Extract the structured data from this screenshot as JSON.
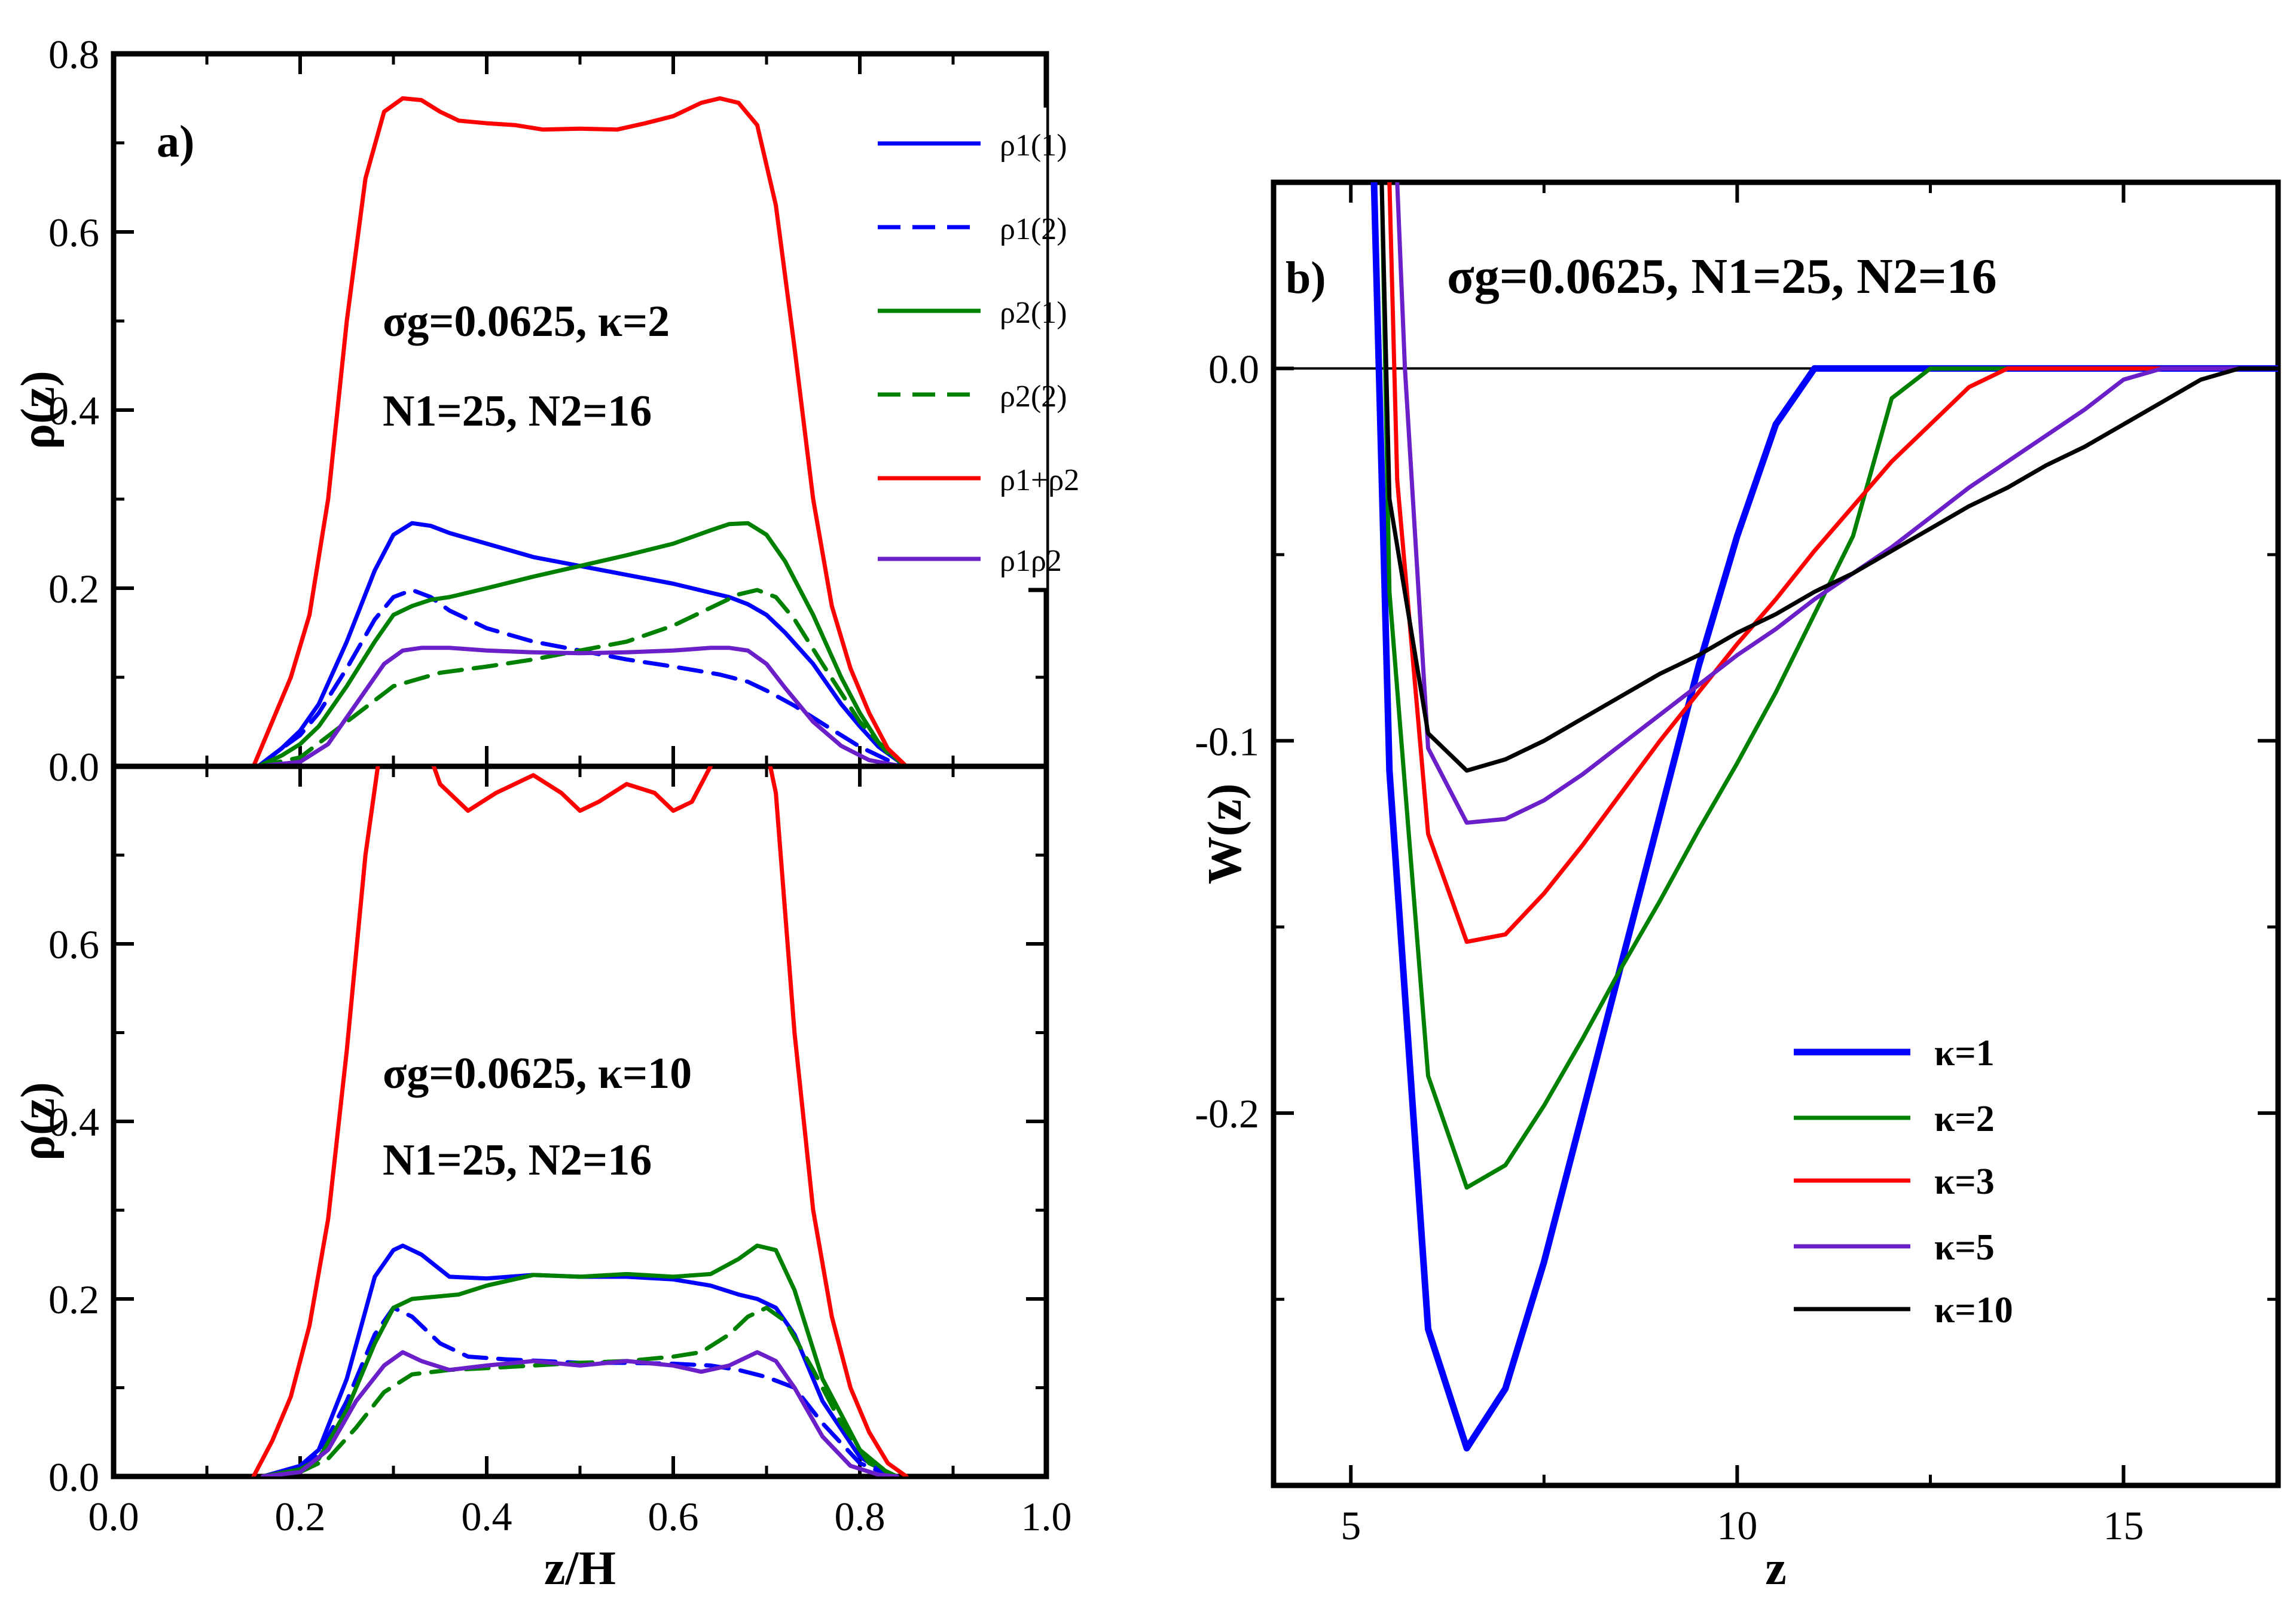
{
  "chart_data": [
    {
      "id": "a-top",
      "type": "line",
      "panel_label": "a)",
      "ylabel": "ρ(z)",
      "xlim": [
        0.0,
        1.0
      ],
      "ylim": [
        0.0,
        0.8
      ],
      "yticks": [
        "0.0",
        "0.2",
        "0.4",
        "0.6",
        "0.8"
      ],
      "annotation": {
        "line1": "σg=0.0625, κ=2",
        "line2": "N1=25, N2=16"
      },
      "legend": [
        "ρ1(1)",
        "ρ1(2)",
        "ρ2(1)",
        "ρ2(2)",
        "ρ1+ρ2",
        "ρ1ρ2"
      ],
      "series": [
        {
          "name": "ρ1(1)",
          "color": "#0000ff",
          "dash": false,
          "x": [
            0.155,
            0.18,
            0.2,
            0.22,
            0.25,
            0.28,
            0.3,
            0.32,
            0.34,
            0.36,
            0.4,
            0.45,
            0.5,
            0.55,
            0.6,
            0.64,
            0.66,
            0.68,
            0.7,
            0.72,
            0.75,
            0.78,
            0.8,
            0.82,
            0.84,
            0.85
          ],
          "y": [
            0,
            0.02,
            0.04,
            0.07,
            0.14,
            0.22,
            0.26,
            0.273,
            0.27,
            0.262,
            0.25,
            0.235,
            0.225,
            0.215,
            0.205,
            0.195,
            0.19,
            0.182,
            0.17,
            0.15,
            0.115,
            0.07,
            0.045,
            0.022,
            0.007,
            0
          ]
        },
        {
          "name": "ρ1(2)",
          "color": "#0000ff",
          "dash": true,
          "x": [
            0.155,
            0.18,
            0.2,
            0.22,
            0.25,
            0.28,
            0.3,
            0.32,
            0.34,
            0.36,
            0.4,
            0.45,
            0.5,
            0.55,
            0.6,
            0.65,
            0.68,
            0.7,
            0.73,
            0.76,
            0.8,
            0.83,
            0.85
          ],
          "y": [
            0,
            0.02,
            0.035,
            0.06,
            0.11,
            0.165,
            0.19,
            0.198,
            0.19,
            0.175,
            0.155,
            0.14,
            0.13,
            0.12,
            0.112,
            0.103,
            0.095,
            0.085,
            0.068,
            0.048,
            0.022,
            0.007,
            0
          ]
        },
        {
          "name": "ρ2(1)",
          "color": "#008000",
          "dash": false,
          "x": [
            0.155,
            0.18,
            0.2,
            0.22,
            0.25,
            0.28,
            0.3,
            0.32,
            0.34,
            0.36,
            0.4,
            0.45,
            0.5,
            0.55,
            0.6,
            0.64,
            0.66,
            0.68,
            0.7,
            0.72,
            0.75,
            0.78,
            0.8,
            0.82,
            0.84,
            0.85
          ],
          "y": [
            0,
            0.012,
            0.025,
            0.045,
            0.09,
            0.14,
            0.17,
            0.18,
            0.187,
            0.19,
            0.2,
            0.213,
            0.225,
            0.237,
            0.25,
            0.265,
            0.272,
            0.273,
            0.26,
            0.23,
            0.17,
            0.1,
            0.06,
            0.027,
            0.008,
            0
          ]
        },
        {
          "name": "ρ2(2)",
          "color": "#008000",
          "dash": true,
          "x": [
            0.155,
            0.2,
            0.25,
            0.3,
            0.35,
            0.4,
            0.45,
            0.5,
            0.55,
            0.6,
            0.64,
            0.67,
            0.69,
            0.71,
            0.73,
            0.76,
            0.8,
            0.83,
            0.85
          ],
          "y": [
            0,
            0.01,
            0.05,
            0.09,
            0.105,
            0.112,
            0.12,
            0.13,
            0.14,
            0.158,
            0.178,
            0.193,
            0.198,
            0.19,
            0.165,
            0.115,
            0.05,
            0.015,
            0
          ]
        },
        {
          "name": "ρ1+ρ2",
          "color": "#ff0000",
          "dash": false,
          "x": [
            0.15,
            0.17,
            0.19,
            0.21,
            0.23,
            0.25,
            0.27,
            0.29,
            0.31,
            0.33,
            0.35,
            0.37,
            0.4,
            0.43,
            0.46,
            0.5,
            0.54,
            0.57,
            0.6,
            0.63,
            0.65,
            0.67,
            0.69,
            0.71,
            0.73,
            0.75,
            0.77,
            0.79,
            0.81,
            0.83,
            0.85
          ],
          "y": [
            0,
            0.05,
            0.1,
            0.17,
            0.3,
            0.5,
            0.66,
            0.735,
            0.75,
            0.748,
            0.735,
            0.725,
            0.722,
            0.72,
            0.715,
            0.716,
            0.715,
            0.722,
            0.73,
            0.745,
            0.75,
            0.745,
            0.72,
            0.63,
            0.47,
            0.3,
            0.18,
            0.11,
            0.06,
            0.02,
            0
          ]
        },
        {
          "name": "ρ1ρ2",
          "color": "#6a1fc8",
          "dash": false,
          "x": [
            0.155,
            0.2,
            0.23,
            0.26,
            0.29,
            0.31,
            0.33,
            0.36,
            0.4,
            0.45,
            0.5,
            0.55,
            0.6,
            0.64,
            0.66,
            0.68,
            0.7,
            0.72,
            0.75,
            0.78,
            0.81,
            0.84,
            0.85
          ],
          "y": [
            0,
            0.005,
            0.025,
            0.07,
            0.115,
            0.13,
            0.133,
            0.133,
            0.13,
            0.128,
            0.127,
            0.128,
            0.13,
            0.133,
            0.133,
            0.13,
            0.115,
            0.088,
            0.05,
            0.023,
            0.007,
            0.001,
            0
          ]
        }
      ]
    },
    {
      "id": "a-bottom",
      "type": "line",
      "xlabel": "z/H",
      "ylabel": "ρ(z)",
      "xlim": [
        0.0,
        1.0
      ],
      "ylim": [
        0.0,
        0.8
      ],
      "xticks": [
        "0.0",
        "0.2",
        "0.4",
        "0.6",
        "0.8",
        "1.0"
      ],
      "yticks": [
        "0.0",
        "0.2",
        "0.4",
        "0.6"
      ],
      "annotation": {
        "line1": "σg=0.0625, κ=10",
        "line2": "N1=25, N2=16"
      },
      "series": [
        {
          "name": "ρ1(1)",
          "color": "#0000ff",
          "dash": false,
          "x": [
            0.16,
            0.2,
            0.22,
            0.25,
            0.28,
            0.3,
            0.31,
            0.33,
            0.36,
            0.4,
            0.45,
            0.5,
            0.55,
            0.6,
            0.64,
            0.67,
            0.69,
            0.71,
            0.73,
            0.76,
            0.8,
            0.83,
            0.84
          ],
          "y": [
            0,
            0.012,
            0.03,
            0.11,
            0.225,
            0.255,
            0.26,
            0.25,
            0.225,
            0.223,
            0.227,
            0.225,
            0.225,
            0.222,
            0.215,
            0.205,
            0.2,
            0.19,
            0.16,
            0.085,
            0.022,
            0.003,
            0
          ]
        },
        {
          "name": "ρ1(2)",
          "color": "#0000ff",
          "dash": true,
          "x": [
            0.16,
            0.2,
            0.22,
            0.25,
            0.28,
            0.3,
            0.32,
            0.35,
            0.38,
            0.42,
            0.46,
            0.5,
            0.55,
            0.6,
            0.64,
            0.67,
            0.7,
            0.73,
            0.76,
            0.8,
            0.83,
            0.84
          ],
          "y": [
            0,
            0.01,
            0.025,
            0.085,
            0.16,
            0.19,
            0.18,
            0.15,
            0.135,
            0.132,
            0.13,
            0.128,
            0.128,
            0.127,
            0.125,
            0.12,
            0.112,
            0.1,
            0.06,
            0.015,
            0.002,
            0
          ]
        },
        {
          "name": "ρ2(1)",
          "color": "#008000",
          "dash": false,
          "x": [
            0.16,
            0.2,
            0.22,
            0.25,
            0.28,
            0.3,
            0.32,
            0.34,
            0.37,
            0.4,
            0.45,
            0.5,
            0.55,
            0.6,
            0.64,
            0.67,
            0.69,
            0.71,
            0.73,
            0.76,
            0.8,
            0.83,
            0.84
          ],
          "y": [
            0,
            0.008,
            0.02,
            0.075,
            0.15,
            0.19,
            0.2,
            0.202,
            0.205,
            0.215,
            0.227,
            0.225,
            0.228,
            0.225,
            0.228,
            0.245,
            0.26,
            0.255,
            0.21,
            0.11,
            0.03,
            0.004,
            0
          ]
        },
        {
          "name": "ρ2(2)",
          "color": "#008000",
          "dash": true,
          "x": [
            0.16,
            0.2,
            0.23,
            0.26,
            0.29,
            0.32,
            0.36,
            0.4,
            0.45,
            0.5,
            0.55,
            0.6,
            0.63,
            0.66,
            0.68,
            0.7,
            0.72,
            0.75,
            0.78,
            0.81,
            0.84
          ],
          "y": [
            0,
            0.005,
            0.02,
            0.055,
            0.095,
            0.115,
            0.12,
            0.122,
            0.125,
            0.128,
            0.13,
            0.135,
            0.14,
            0.16,
            0.18,
            0.19,
            0.175,
            0.12,
            0.06,
            0.015,
            0
          ]
        },
        {
          "name": "ρ1+ρ2",
          "color": "#ff0000",
          "dash": false,
          "x": [
            0.15,
            0.17,
            0.19,
            0.21,
            0.23,
            0.25,
            0.27,
            0.29,
            0.31,
            0.33,
            0.35,
            0.38,
            0.41,
            0.45,
            0.48,
            0.5,
            0.52,
            0.55,
            0.58,
            0.6,
            0.62,
            0.64,
            0.665,
            0.69,
            0.71,
            0.73,
            0.75,
            0.77,
            0.79,
            0.81,
            0.83,
            0.85
          ],
          "y": [
            0,
            0.04,
            0.09,
            0.17,
            0.29,
            0.48,
            0.7,
            0.85,
            0.88,
            0.84,
            0.78,
            0.75,
            0.77,
            0.79,
            0.77,
            0.75,
            0.76,
            0.78,
            0.77,
            0.75,
            0.76,
            0.8,
            0.85,
            0.87,
            0.77,
            0.5,
            0.3,
            0.18,
            0.1,
            0.05,
            0.015,
            0
          ]
        },
        {
          "name": "ρ1ρ2",
          "color": "#6a1fc8",
          "dash": false,
          "x": [
            0.16,
            0.2,
            0.23,
            0.26,
            0.29,
            0.31,
            0.33,
            0.36,
            0.4,
            0.45,
            0.5,
            0.55,
            0.6,
            0.63,
            0.66,
            0.69,
            0.71,
            0.73,
            0.76,
            0.79,
            0.82,
            0.84
          ],
          "y": [
            0,
            0.005,
            0.03,
            0.085,
            0.125,
            0.14,
            0.13,
            0.12,
            0.125,
            0.13,
            0.125,
            0.13,
            0.125,
            0.118,
            0.125,
            0.14,
            0.13,
            0.1,
            0.045,
            0.012,
            0.002,
            0
          ]
        }
      ]
    },
    {
      "id": "b",
      "type": "line",
      "panel_label": "b)",
      "xlabel": "z",
      "ylabel": "W(z)",
      "xlim": [
        4.0,
        17.0
      ],
      "ylim": [
        -0.3,
        0.05
      ],
      "xticks": [
        "5",
        "10",
        "15"
      ],
      "yticks": [
        "0.0",
        "-0.1",
        "-0.2"
      ],
      "annotation": {
        "line1": "σg=0.0625, N1=25, N2=16"
      },
      "legend": [
        "κ=1",
        "κ=2",
        "κ=3",
        "κ=5",
        "κ=10"
      ],
      "series": [
        {
          "name": "κ=1",
          "color": "#0000ff",
          "x": [
            5.3,
            5.5,
            6,
            6.5,
            7,
            7.5,
            8,
            8.5,
            9,
            9.5,
            10,
            10.5,
            11,
            17
          ],
          "y": [
            0.05,
            -0.108,
            -0.258,
            -0.29,
            -0.274,
            -0.24,
            -0.2,
            -0.16,
            -0.12,
            -0.08,
            -0.045,
            -0.015,
            0,
            0
          ]
        },
        {
          "name": "κ=2",
          "color": "#008000",
          "x": [
            5.4,
            5.5,
            6,
            6.5,
            7,
            7.5,
            8,
            8.5,
            9,
            9.5,
            10,
            10.5,
            11,
            11.5,
            12,
            12.5,
            17
          ],
          "y": [
            0.05,
            -0.06,
            -0.19,
            -0.22,
            -0.214,
            -0.198,
            -0.18,
            -0.161,
            -0.143,
            -0.124,
            -0.106,
            -0.087,
            -0.066,
            -0.045,
            -0.008,
            0,
            0
          ]
        },
        {
          "name": "κ=3",
          "color": "#ff0000",
          "x": [
            5.5,
            5.6,
            6,
            6.5,
            7,
            7.5,
            8,
            8.5,
            9,
            9.5,
            10,
            10.5,
            11,
            11.5,
            12,
            12.5,
            13,
            13.5,
            17
          ],
          "y": [
            0.05,
            -0.03,
            -0.125,
            -0.154,
            -0.152,
            -0.141,
            -0.128,
            -0.114,
            -0.1,
            -0.087,
            -0.074,
            -0.062,
            -0.049,
            -0.037,
            -0.025,
            -0.015,
            -0.005,
            0,
            0
          ]
        },
        {
          "name": "κ=5",
          "color": "#6a1fc8",
          "x": [
            5.6,
            5.7,
            6,
            6.5,
            7,
            7.5,
            8,
            8.5,
            9,
            9.5,
            10,
            10.5,
            11,
            11.5,
            12,
            12.5,
            13,
            13.5,
            14,
            14.5,
            15,
            15.5,
            17
          ],
          "y": [
            0.05,
            0,
            -0.102,
            -0.122,
            -0.121,
            -0.116,
            -0.109,
            -0.101,
            -0.093,
            -0.085,
            -0.077,
            -0.07,
            -0.062,
            -0.055,
            -0.048,
            -0.04,
            -0.032,
            -0.025,
            -0.018,
            -0.011,
            -0.003,
            0,
            0
          ]
        },
        {
          "name": "κ=10",
          "color": "#000000",
          "x": [
            5.4,
            5.5,
            6,
            6.5,
            7,
            7.5,
            8,
            8.5,
            9,
            9.5,
            10,
            10.5,
            11,
            11.5,
            12,
            12.5,
            13,
            13.5,
            14,
            14.5,
            15,
            15.5,
            16,
            16.5,
            17
          ],
          "y": [
            0.05,
            -0.035,
            -0.098,
            -0.108,
            -0.105,
            -0.1,
            -0.094,
            -0.088,
            -0.082,
            -0.077,
            -0.071,
            -0.066,
            -0.06,
            -0.055,
            -0.049,
            -0.043,
            -0.037,
            -0.032,
            -0.026,
            -0.021,
            -0.015,
            -0.009,
            -0.003,
            0,
            0
          ]
        }
      ]
    }
  ]
}
